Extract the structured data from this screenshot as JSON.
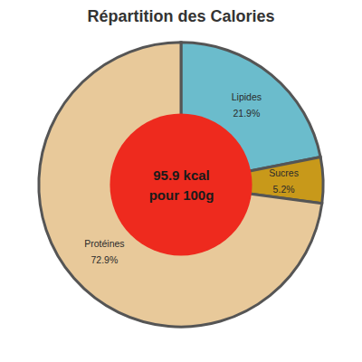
{
  "chart_data": {
    "type": "pie",
    "title": "Répartition des Calories",
    "categories": [
      "Lipides",
      "Sucres",
      "Protéines"
    ],
    "values": [
      21.9,
      5.2,
      72.9
    ],
    "value_labels": [
      "21.9%",
      "5.2%",
      "72.9%"
    ],
    "colors": [
      "#6bbccc",
      "#c8991a",
      "#e8c99a"
    ],
    "data_labels": true,
    "annotations": [
      "95.9 kcal",
      "pour 100g"
    ]
  }
}
